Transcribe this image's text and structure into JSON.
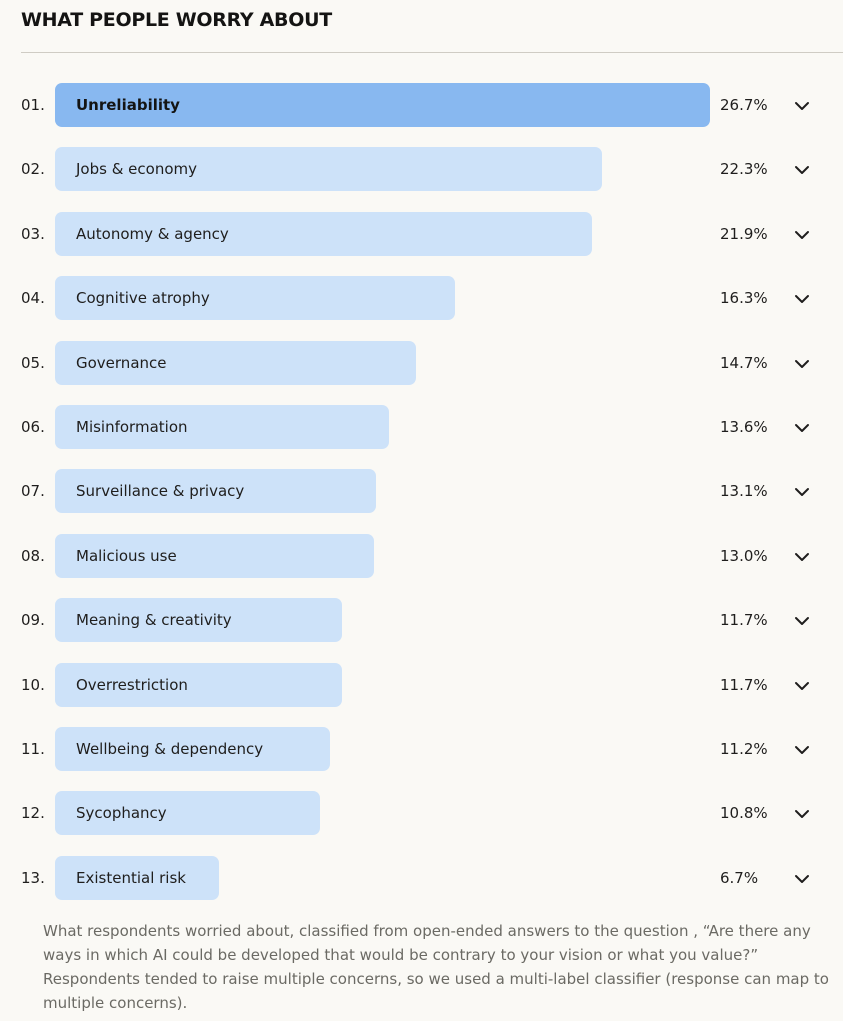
{
  "title": "WHAT PEOPLE WORRY ABOUT",
  "chart_data": {
    "type": "bar",
    "orientation": "horizontal",
    "categories": [
      "Unreliability",
      "Jobs & economy",
      "Autonomy & agency",
      "Cognitive atrophy",
      "Governance",
      "Misinformation",
      "Surveillance & privacy",
      "Malicious use",
      "Meaning & creativity",
      "Overrestriction",
      "Wellbeing & dependency",
      "Sycophancy",
      "Existential risk"
    ],
    "ranks": [
      "01.",
      "02.",
      "03.",
      "04.",
      "05.",
      "06.",
      "07.",
      "08.",
      "09.",
      "10.",
      "11.",
      "12.",
      "13."
    ],
    "values": [
      26.7,
      22.3,
      21.9,
      16.3,
      14.7,
      13.6,
      13.1,
      13.0,
      11.7,
      11.7,
      11.2,
      10.8,
      6.7
    ],
    "value_labels": [
      "26.7%",
      "22.3%",
      "21.9%",
      "16.3%",
      "14.7%",
      "13.6%",
      "13.1%",
      "13.0%",
      "11.7%",
      "11.7%",
      "11.2%",
      "10.8%",
      "6.7%"
    ],
    "xlim": [
      0,
      26.7
    ],
    "unit": "%",
    "row_icon": "chevron-down-icon",
    "colors": {
      "highlight": "#88b8f0",
      "bar": "#cde2f9"
    }
  },
  "caption": "What respondents worried about, classified from open-ended answers to the question , “Are there any ways in which AI could be developed that would be contrary to your vision or what you value?” Respondents tended to raise multiple concerns, so we used a multi-label classifier (response can map to multiple concerns)."
}
